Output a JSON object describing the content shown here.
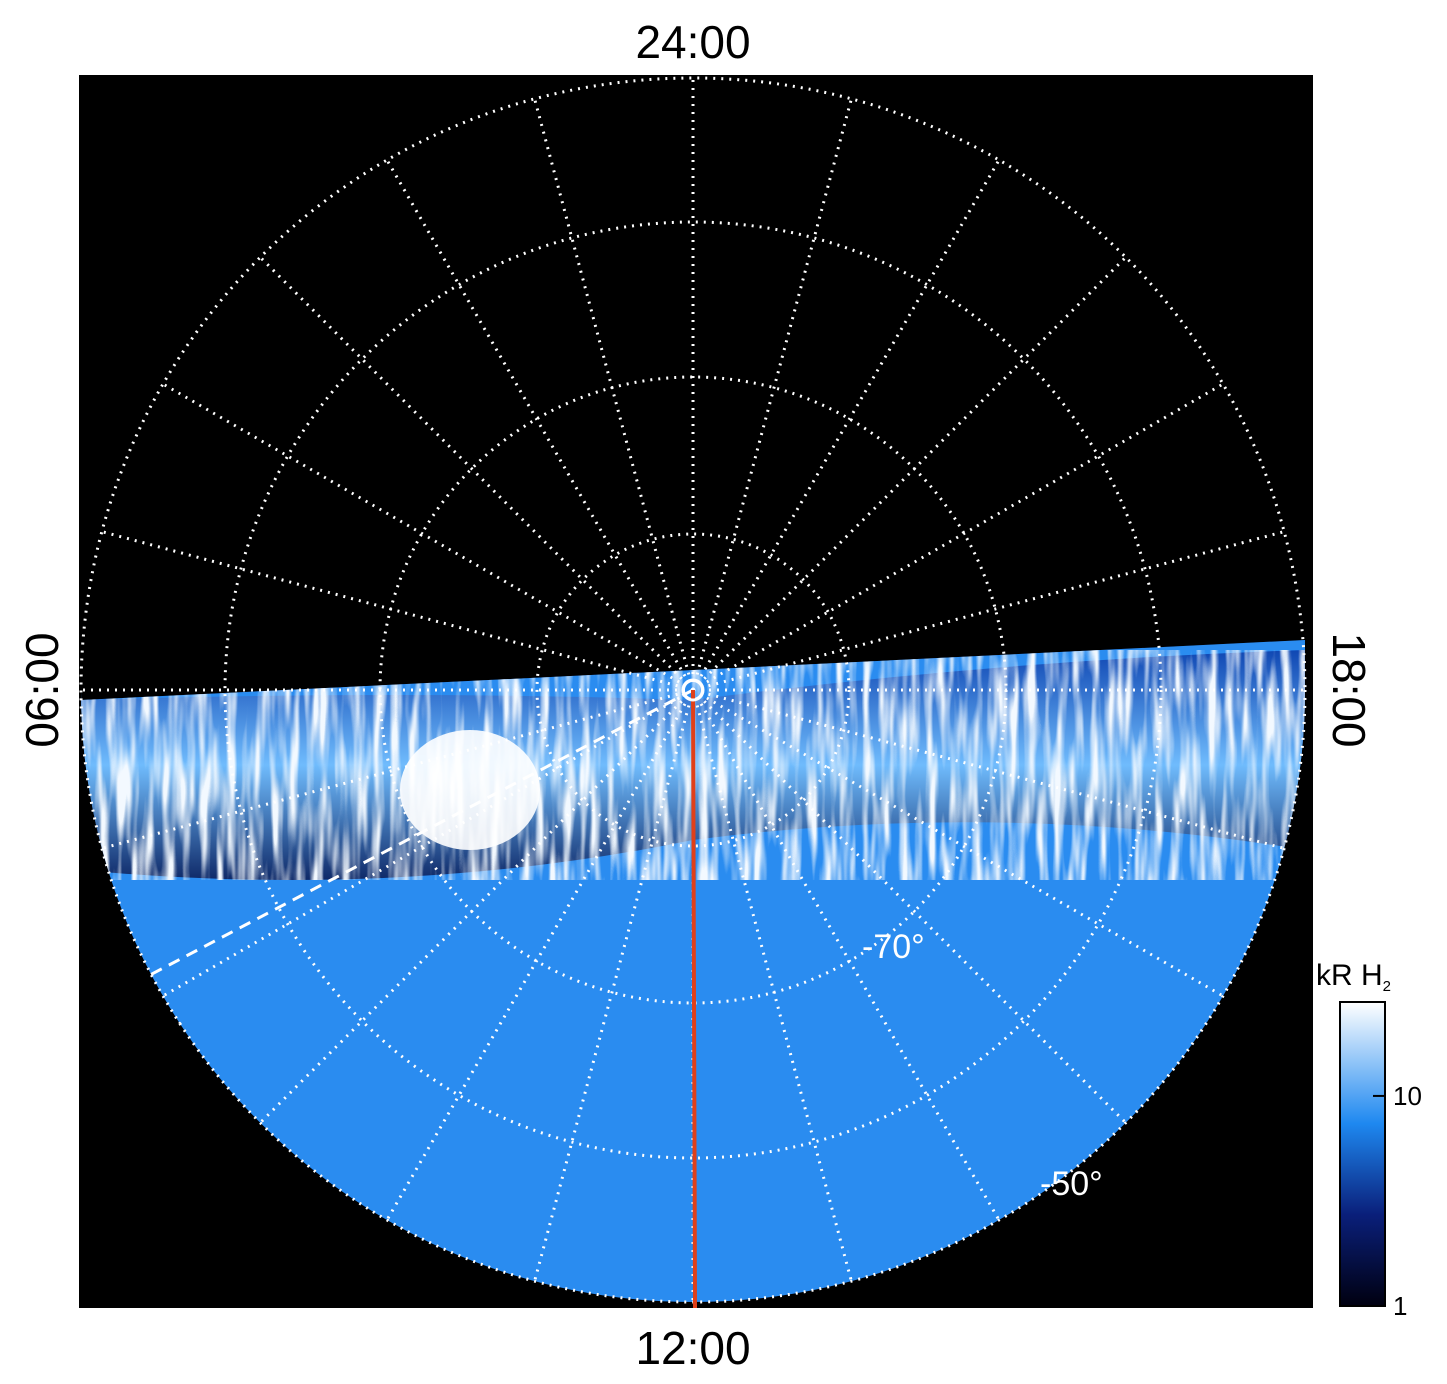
{
  "image": {
    "local_time_labels": {
      "top": "24:00",
      "bottom": "12:00",
      "left": "06:00",
      "right": "18:00"
    },
    "latitude_labels": [
      "-70°",
      "-50°"
    ],
    "colorbar": {
      "title": "kR H",
      "title_subscript": "2",
      "scale": "log",
      "lim": [
        1,
        28
      ],
      "ticks": [
        1,
        10
      ]
    }
  }
}
